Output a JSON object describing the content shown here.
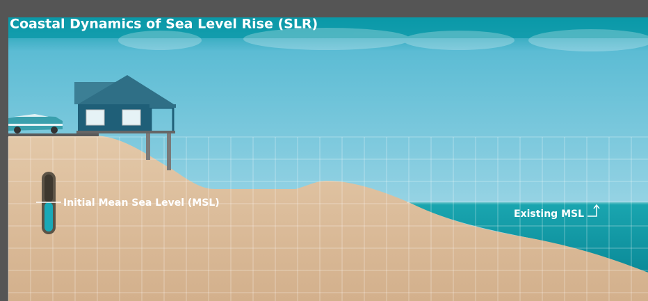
{
  "header": {
    "title": "Coastal Dynamics of Sea Level Rise (SLR)"
  },
  "labels": {
    "initial_msl": "Initial Mean Sea Level (MSL)",
    "existing_msl": "Existing MSL"
  }
}
